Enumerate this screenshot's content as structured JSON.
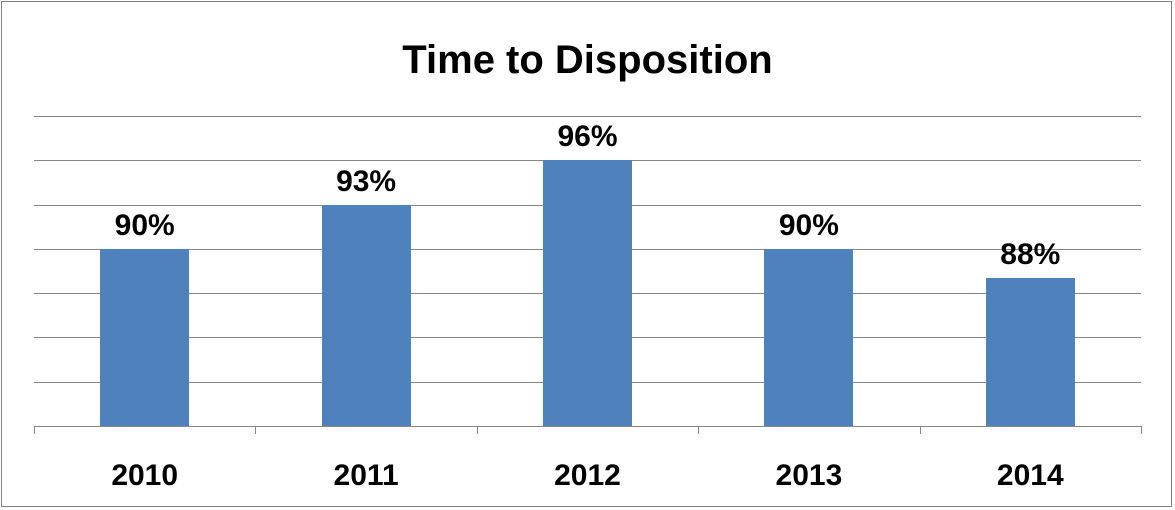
{
  "chart_data": {
    "type": "bar",
    "title": "Time to Disposition",
    "categories": [
      "2010",
      "2011",
      "2012",
      "2013",
      "2014"
    ],
    "values": [
      90,
      93,
      96,
      90,
      88
    ],
    "value_labels": [
      "90%",
      "93%",
      "96%",
      "90%",
      "88%"
    ],
    "ylim": [
      78,
      99
    ],
    "grid": true,
    "legend": "none",
    "colors": {
      "bar": "#4f81bd",
      "grid": "#868686",
      "axis": "#868686"
    }
  }
}
